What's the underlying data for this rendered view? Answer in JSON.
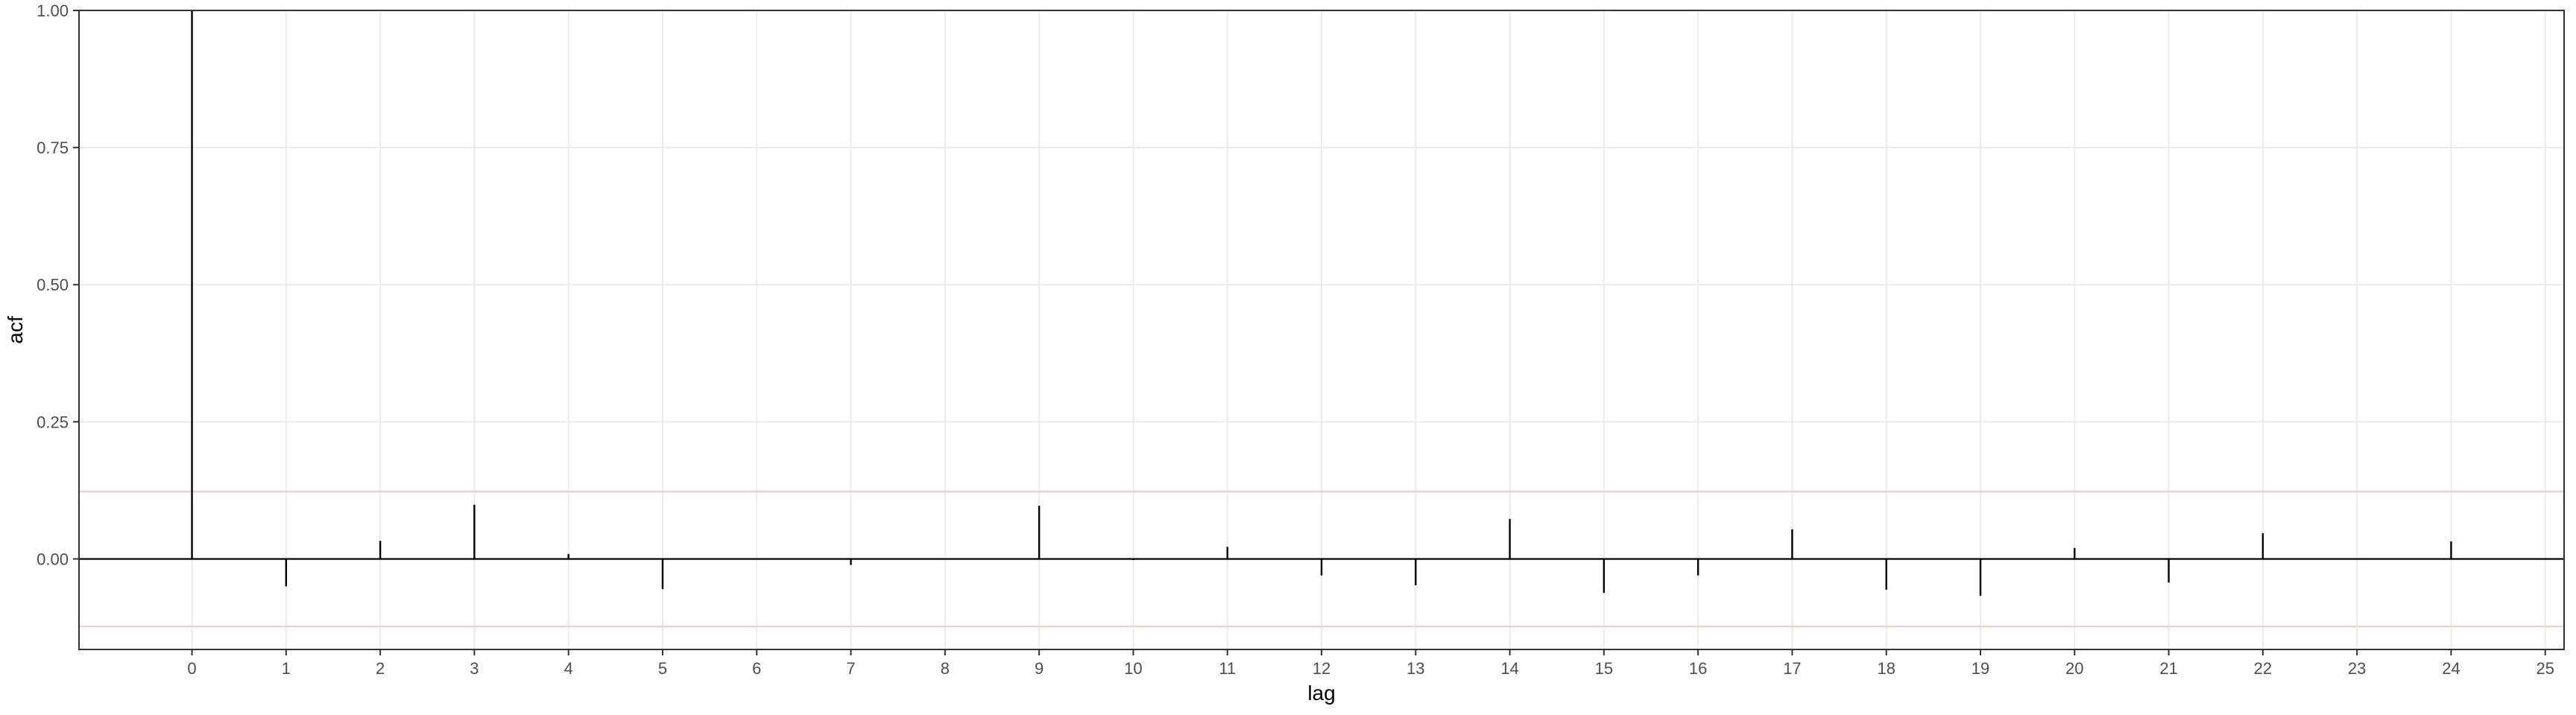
{
  "chart_data": {
    "type": "bar",
    "xlabel": "lag",
    "ylabel": "acf",
    "title": "",
    "lags": [
      0,
      1,
      2,
      3,
      4,
      5,
      6,
      7,
      8,
      9,
      10,
      11,
      12,
      13,
      14,
      15,
      16,
      17,
      18,
      19,
      20,
      21,
      22,
      23,
      24
    ],
    "values": [
      1.0,
      -0.05,
      0.033,
      0.099,
      0.009,
      -0.055,
      -0.001,
      -0.011,
      -0.001,
      0.097,
      -0.002,
      0.022,
      -0.03,
      -0.048,
      0.073,
      -0.062,
      -0.03,
      0.054,
      -0.056,
      -0.067,
      0.02,
      -0.043,
      0.047,
      -0.001,
      0.032
    ],
    "x_ticks": [
      "0",
      "1",
      "2",
      "3",
      "4",
      "5",
      "6",
      "7",
      "8",
      "9",
      "10",
      "11",
      "12",
      "13",
      "14",
      "15",
      "16",
      "17",
      "18",
      "19",
      "20",
      "21",
      "22",
      "23",
      "24",
      "25"
    ],
    "y_ticks": [
      "0.00",
      "0.25",
      "0.50",
      "0.75",
      "1.00"
    ],
    "xlim": [
      -1.2,
      25.2
    ],
    "ylim": [
      -0.165,
      1.0
    ],
    "confidence_bounds": [
      0.123,
      -0.123
    ],
    "grid": true,
    "colors": {
      "spike": "#000000",
      "bound": "#ffc0cb",
      "grid": "#ebebeb",
      "border": "#333333",
      "zero_line": "#000000"
    }
  }
}
